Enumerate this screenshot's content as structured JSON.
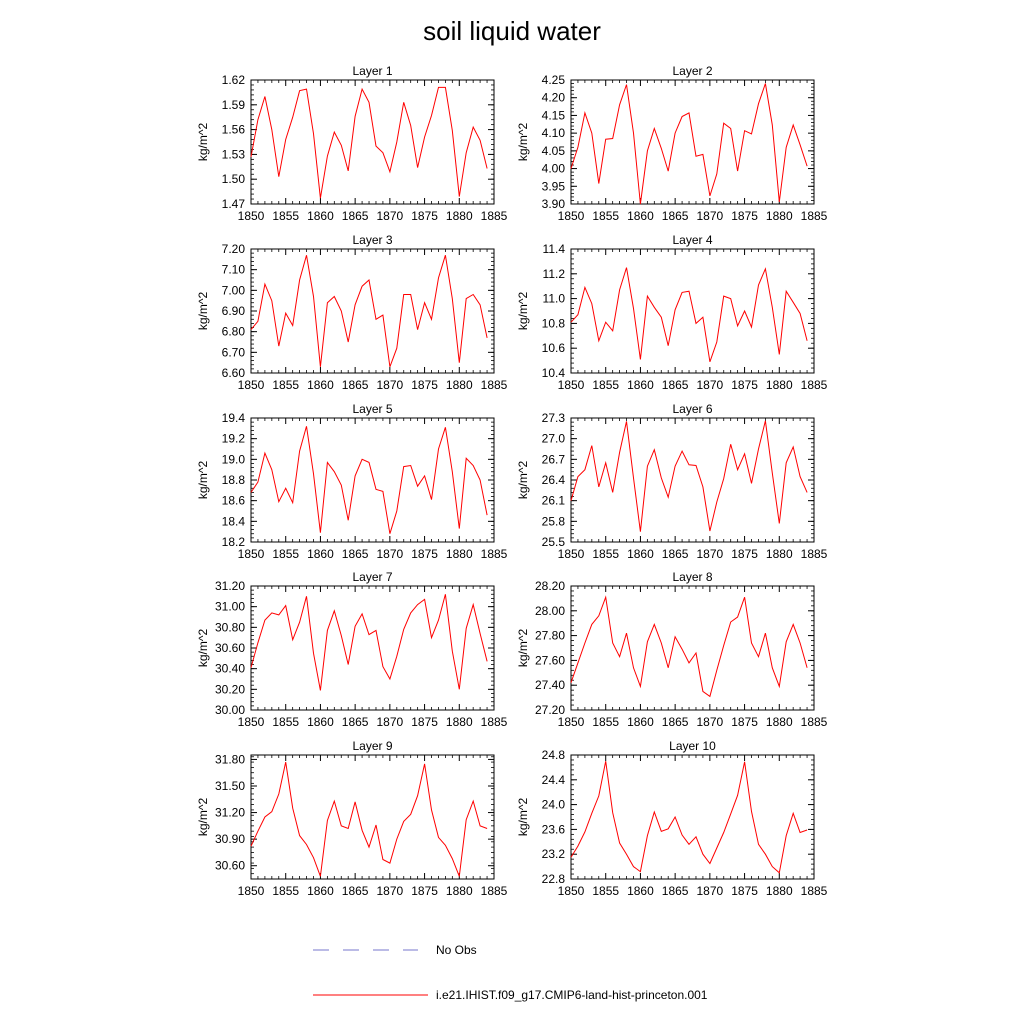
{
  "title": "soil liquid water",
  "legend": {
    "obs_label": "No Obs",
    "obs_color": "#7777cc",
    "model_label": "i.e21.IHIST.f09_g17.CMIP6-land-hist-princeton.001",
    "model_color": "#ff0000"
  },
  "chart_data": [
    {
      "type": "line",
      "title": "Layer 1",
      "ylabel": "kg/m^2",
      "xlim": [
        1850,
        1885
      ],
      "xticks": [
        "1850",
        "1855",
        "1860",
        "1865",
        "1870",
        "1875",
        "1880",
        "1885"
      ],
      "ylim": [
        1.47,
        1.62
      ],
      "yticks": [
        "1.47",
        "1.50",
        "1.53",
        "1.56",
        "1.59",
        "1.62"
      ],
      "x": [
        1850,
        1851,
        1852,
        1853,
        1854,
        1855,
        1856,
        1857,
        1858,
        1859,
        1860,
        1861,
        1862,
        1863,
        1864,
        1865,
        1866,
        1867,
        1868,
        1869,
        1870,
        1871,
        1872,
        1873,
        1874,
        1875,
        1876,
        1877,
        1878,
        1879,
        1880,
        1881,
        1882,
        1883,
        1884
      ],
      "series": [
        {
          "name": "i.e21.IHIST.f09_g17.CMIP6-land-hist-princeton.001",
          "values": [
            1.527,
            1.572,
            1.6,
            1.56,
            1.503,
            1.548,
            1.575,
            1.607,
            1.609,
            1.555,
            1.477,
            1.528,
            1.557,
            1.541,
            1.51,
            1.576,
            1.609,
            1.593,
            1.54,
            1.532,
            1.509,
            1.545,
            1.593,
            1.565,
            1.514,
            1.551,
            1.577,
            1.611,
            1.611,
            1.559,
            1.479,
            1.532,
            1.563,
            1.547,
            1.513
          ]
        }
      ]
    },
    {
      "type": "line",
      "title": "Layer 2",
      "ylabel": "kg/m^2",
      "xlim": [
        1850,
        1885
      ],
      "xticks": [
        "1850",
        "1855",
        "1860",
        "1865",
        "1870",
        "1875",
        "1880",
        "1885"
      ],
      "ylim": [
        3.9,
        4.25
      ],
      "yticks": [
        "3.90",
        "3.95",
        "4.00",
        "4.05",
        "4.10",
        "4.15",
        "4.20",
        "4.25"
      ],
      "x": [
        1850,
        1851,
        1852,
        1853,
        1854,
        1855,
        1856,
        1857,
        1858,
        1859,
        1860,
        1861,
        1862,
        1863,
        1864,
        1865,
        1866,
        1867,
        1868,
        1869,
        1870,
        1871,
        1872,
        1873,
        1874,
        1875,
        1876,
        1877,
        1878,
        1879,
        1880,
        1881,
        1882,
        1883,
        1884
      ],
      "series": [
        {
          "name": "i.e21.IHIST.f09_g17.CMIP6-land-hist-princeton.001",
          "values": [
            4.0,
            4.06,
            4.157,
            4.1,
            3.958,
            4.083,
            4.085,
            4.18,
            4.237,
            4.1,
            3.9,
            4.05,
            4.113,
            4.057,
            3.993,
            4.1,
            4.147,
            4.157,
            4.035,
            4.04,
            3.923,
            3.985,
            4.128,
            4.113,
            3.993,
            4.107,
            4.098,
            4.183,
            4.24,
            4.123,
            3.906,
            4.06,
            4.123,
            4.067,
            4.007
          ]
        }
      ]
    },
    {
      "type": "line",
      "title": "Layer 3",
      "ylabel": "kg/m^2",
      "xlim": [
        1850,
        1885
      ],
      "xticks": [
        "1850",
        "1855",
        "1860",
        "1865",
        "1870",
        "1875",
        "1880",
        "1885"
      ],
      "ylim": [
        6.6,
        7.2
      ],
      "yticks": [
        "6.60",
        "6.70",
        "6.80",
        "6.90",
        "7.00",
        "7.10",
        "7.20"
      ],
      "x": [
        1850,
        1851,
        1852,
        1853,
        1854,
        1855,
        1856,
        1857,
        1858,
        1859,
        1860,
        1861,
        1862,
        1863,
        1864,
        1865,
        1866,
        1867,
        1868,
        1869,
        1870,
        1871,
        1872,
        1873,
        1874,
        1875,
        1876,
        1877,
        1878,
        1879,
        1880,
        1881,
        1882,
        1883,
        1884
      ],
      "series": [
        {
          "name": "i.e21.IHIST.f09_g17.CMIP6-land-hist-princeton.001",
          "values": [
            6.81,
            6.85,
            7.03,
            6.95,
            6.73,
            6.89,
            6.83,
            7.05,
            7.17,
            6.97,
            6.63,
            6.94,
            6.97,
            6.9,
            6.75,
            6.93,
            7.02,
            7.05,
            6.86,
            6.88,
            6.63,
            6.72,
            6.98,
            6.98,
            6.81,
            6.94,
            6.86,
            7.06,
            7.17,
            6.96,
            6.65,
            6.96,
            6.98,
            6.93,
            6.77
          ]
        }
      ]
    },
    {
      "type": "line",
      "title": "Layer 4",
      "ylabel": "kg/m^2",
      "xlim": [
        1850,
        1885
      ],
      "xticks": [
        "1850",
        "1855",
        "1860",
        "1865",
        "1870",
        "1875",
        "1880",
        "1885"
      ],
      "ylim": [
        10.4,
        11.4
      ],
      "yticks": [
        "10.4",
        "10.6",
        "10.8",
        "11.0",
        "11.2",
        "11.4"
      ],
      "x": [
        1850,
        1851,
        1852,
        1853,
        1854,
        1855,
        1856,
        1857,
        1858,
        1859,
        1860,
        1861,
        1862,
        1863,
        1864,
        1865,
        1866,
        1867,
        1868,
        1869,
        1870,
        1871,
        1872,
        1873,
        1874,
        1875,
        1876,
        1877,
        1878,
        1879,
        1880,
        1881,
        1882,
        1883,
        1884
      ],
      "series": [
        {
          "name": "i.e21.IHIST.f09_g17.CMIP6-land-hist-princeton.001",
          "values": [
            10.81,
            10.87,
            11.09,
            10.96,
            10.66,
            10.81,
            10.74,
            11.07,
            11.25,
            10.92,
            10.51,
            11.02,
            10.93,
            10.85,
            10.62,
            10.91,
            11.05,
            11.06,
            10.8,
            10.85,
            10.49,
            10.65,
            11.02,
            11.0,
            10.78,
            10.9,
            10.77,
            11.11,
            11.24,
            10.93,
            10.55,
            11.06,
            10.97,
            10.88,
            10.66
          ]
        }
      ]
    },
    {
      "type": "line",
      "title": "Layer 5",
      "ylabel": "kg/m^2",
      "xlim": [
        1850,
        1885
      ],
      "xticks": [
        "1850",
        "1855",
        "1860",
        "1865",
        "1870",
        "1875",
        "1880",
        "1885"
      ],
      "ylim": [
        18.2,
        19.4
      ],
      "yticks": [
        "18.2",
        "18.4",
        "18.6",
        "18.8",
        "19.0",
        "19.2",
        "19.4"
      ],
      "x": [
        1850,
        1851,
        1852,
        1853,
        1854,
        1855,
        1856,
        1857,
        1858,
        1859,
        1860,
        1861,
        1862,
        1863,
        1864,
        1865,
        1866,
        1867,
        1868,
        1869,
        1870,
        1871,
        1872,
        1873,
        1874,
        1875,
        1876,
        1877,
        1878,
        1879,
        1880,
        1881,
        1882,
        1883,
        1884
      ],
      "series": [
        {
          "name": "i.e21.IHIST.f09_g17.CMIP6-land-hist-princeton.001",
          "values": [
            18.68,
            18.78,
            19.06,
            18.9,
            18.59,
            18.72,
            18.58,
            19.08,
            19.32,
            18.86,
            18.29,
            18.97,
            18.88,
            18.75,
            18.41,
            18.84,
            19.0,
            18.97,
            18.71,
            18.69,
            18.28,
            18.5,
            18.93,
            18.94,
            18.74,
            18.84,
            18.61,
            19.1,
            19.31,
            18.88,
            18.33,
            19.01,
            18.94,
            18.8,
            18.46
          ]
        }
      ]
    },
    {
      "type": "line",
      "title": "Layer 6",
      "ylabel": "kg/m^2",
      "xlim": [
        1850,
        1885
      ],
      "xticks": [
        "1850",
        "1855",
        "1860",
        "1865",
        "1870",
        "1875",
        "1880",
        "1885"
      ],
      "ylim": [
        25.5,
        27.3
      ],
      "yticks": [
        "25.5",
        "25.8",
        "26.1",
        "26.4",
        "26.7",
        "27.0",
        "27.3"
      ],
      "x": [
        1850,
        1851,
        1852,
        1853,
        1854,
        1855,
        1856,
        1857,
        1858,
        1859,
        1860,
        1861,
        1862,
        1863,
        1864,
        1865,
        1866,
        1867,
        1868,
        1869,
        1870,
        1871,
        1872,
        1873,
        1874,
        1875,
        1876,
        1877,
        1878,
        1879,
        1880,
        1881,
        1882,
        1883,
        1884
      ],
      "series": [
        {
          "name": "i.e21.IHIST.f09_g17.CMIP6-land-hist-princeton.001",
          "values": [
            26.1,
            26.45,
            26.55,
            26.9,
            26.3,
            26.65,
            26.22,
            26.8,
            27.25,
            26.43,
            25.65,
            26.6,
            26.84,
            26.43,
            26.15,
            26.6,
            26.82,
            26.62,
            26.61,
            26.3,
            25.66,
            26.08,
            26.42,
            26.92,
            26.55,
            26.78,
            26.35,
            26.85,
            27.26,
            26.5,
            25.77,
            26.65,
            26.88,
            26.45,
            26.22
          ]
        }
      ]
    },
    {
      "type": "line",
      "title": "Layer 7",
      "ylabel": "kg/m^2",
      "xlim": [
        1850,
        1885
      ],
      "xticks": [
        "1850",
        "1855",
        "1860",
        "1865",
        "1870",
        "1875",
        "1880",
        "1885"
      ],
      "ylim": [
        30.0,
        31.2
      ],
      "yticks": [
        "30.00",
        "30.20",
        "30.40",
        "30.60",
        "30.80",
        "31.00",
        "31.20"
      ],
      "x": [
        1850,
        1851,
        1852,
        1853,
        1854,
        1855,
        1856,
        1857,
        1858,
        1859,
        1860,
        1861,
        1862,
        1863,
        1864,
        1865,
        1866,
        1867,
        1868,
        1869,
        1870,
        1871,
        1872,
        1873,
        1874,
        1875,
        1876,
        1877,
        1878,
        1879,
        1880,
        1881,
        1882,
        1883,
        1884
      ],
      "series": [
        {
          "name": "i.e21.IHIST.f09_g17.CMIP6-land-hist-princeton.001",
          "values": [
            30.41,
            30.65,
            30.87,
            30.94,
            30.92,
            31.01,
            30.68,
            30.85,
            31.1,
            30.55,
            30.19,
            30.77,
            30.96,
            30.72,
            30.44,
            30.81,
            30.93,
            30.73,
            30.77,
            30.42,
            30.3,
            30.52,
            30.78,
            30.94,
            31.02,
            31.07,
            30.7,
            30.87,
            31.12,
            30.57,
            30.2,
            30.79,
            31.02,
            30.74,
            30.47
          ]
        }
      ]
    },
    {
      "type": "line",
      "title": "Layer 8",
      "ylabel": "kg/m^2",
      "xlim": [
        1850,
        1885
      ],
      "xticks": [
        "1850",
        "1855",
        "1860",
        "1865",
        "1870",
        "1875",
        "1880",
        "1885"
      ],
      "ylim": [
        27.2,
        28.2
      ],
      "yticks": [
        "27.20",
        "27.40",
        "27.60",
        "27.80",
        "28.00",
        "28.20"
      ],
      "x": [
        1850,
        1851,
        1852,
        1853,
        1854,
        1855,
        1856,
        1857,
        1858,
        1859,
        1860,
        1861,
        1862,
        1863,
        1864,
        1865,
        1866,
        1867,
        1868,
        1869,
        1870,
        1871,
        1872,
        1873,
        1874,
        1875,
        1876,
        1877,
        1878,
        1879,
        1880,
        1881,
        1882,
        1883,
        1884
      ],
      "series": [
        {
          "name": "i.e21.IHIST.f09_g17.CMIP6-land-hist-princeton.001",
          "values": [
            27.42,
            27.58,
            27.74,
            27.89,
            27.96,
            28.11,
            27.74,
            27.63,
            27.82,
            27.54,
            27.39,
            27.75,
            27.89,
            27.74,
            27.54,
            27.79,
            27.69,
            27.58,
            27.66,
            27.35,
            27.31,
            27.52,
            27.72,
            27.91,
            27.95,
            28.11,
            27.74,
            27.63,
            27.82,
            27.54,
            27.39,
            27.75,
            27.89,
            27.74,
            27.54
          ]
        }
      ]
    },
    {
      "type": "line",
      "title": "Layer 9",
      "ylabel": "kg/m^2",
      "xlim": [
        1850,
        1885
      ],
      "xticks": [
        "1850",
        "1855",
        "1860",
        "1865",
        "1870",
        "1875",
        "1880",
        "1885"
      ],
      "ylim": [
        30.45,
        31.85
      ],
      "yticks": [
        "30.60",
        "30.90",
        "31.20",
        "31.50",
        "31.80"
      ],
      "x": [
        1850,
        1851,
        1852,
        1853,
        1854,
        1855,
        1856,
        1857,
        1858,
        1859,
        1860,
        1861,
        1862,
        1863,
        1864,
        1865,
        1866,
        1867,
        1868,
        1869,
        1870,
        1871,
        1872,
        1873,
        1874,
        1875,
        1876,
        1877,
        1878,
        1879,
        1880,
        1881,
        1882,
        1883,
        1884
      ],
      "series": [
        {
          "name": "i.e21.IHIST.f09_g17.CMIP6-land-hist-princeton.001",
          "values": [
            30.82,
            30.99,
            31.15,
            31.21,
            31.41,
            31.77,
            31.25,
            30.94,
            30.84,
            30.69,
            30.48,
            31.11,
            31.33,
            31.05,
            31.02,
            31.32,
            31.0,
            30.81,
            31.06,
            30.67,
            30.63,
            30.9,
            31.1,
            31.18,
            31.39,
            31.75,
            31.23,
            30.92,
            30.83,
            30.68,
            30.48,
            31.12,
            31.33,
            31.05,
            31.02
          ]
        }
      ]
    },
    {
      "type": "line",
      "title": "Layer 10",
      "ylabel": "kg/m^2",
      "xlim": [
        1850,
        1885
      ],
      "xticks": [
        "1850",
        "1855",
        "1860",
        "1865",
        "1870",
        "1875",
        "1880",
        "1885"
      ],
      "ylim": [
        22.8,
        24.8
      ],
      "yticks": [
        "22.8",
        "23.2",
        "23.6",
        "24.0",
        "24.4",
        "24.8"
      ],
      "x": [
        1850,
        1851,
        1852,
        1853,
        1854,
        1855,
        1856,
        1857,
        1858,
        1859,
        1860,
        1861,
        1862,
        1863,
        1864,
        1865,
        1866,
        1867,
        1868,
        1869,
        1870,
        1871,
        1872,
        1873,
        1874,
        1875,
        1876,
        1877,
        1878,
        1879,
        1880,
        1881,
        1882,
        1883,
        1884
      ],
      "series": [
        {
          "name": "i.e21.IHIST.f09_g17.CMIP6-land-hist-princeton.001",
          "values": [
            23.15,
            23.33,
            23.56,
            23.86,
            24.14,
            24.7,
            23.87,
            23.38,
            23.2,
            23.0,
            22.92,
            23.5,
            23.88,
            23.57,
            23.61,
            23.8,
            23.51,
            23.36,
            23.48,
            23.2,
            23.05,
            23.3,
            23.55,
            23.85,
            24.15,
            24.69,
            23.89,
            23.36,
            23.2,
            23.0,
            22.9,
            23.5,
            23.86,
            23.55,
            23.59
          ]
        }
      ]
    }
  ]
}
